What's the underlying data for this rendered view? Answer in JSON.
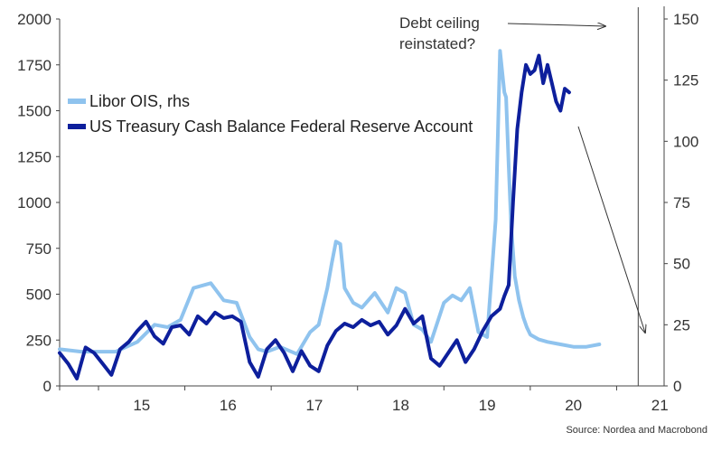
{
  "chart_data": {
    "type": "line",
    "x_ticks": [
      "15",
      "16",
      "17",
      "18",
      "19",
      "20",
      "21"
    ],
    "xlim": [
      2014.55,
      2021.55
    ],
    "ylim_left": [
      0,
      2000
    ],
    "yticks_left": [
      "0",
      "250",
      "500",
      "750",
      "1000",
      "1250",
      "1500",
      "1750",
      "2000"
    ],
    "ylim_right": [
      0,
      150
    ],
    "yticks_right": [
      "0",
      "25",
      "50",
      "75",
      "100",
      "125",
      "150"
    ],
    "grid": false,
    "legend_position": "top-left",
    "colors": {
      "libor": "#8fc3ee",
      "treasury": "#0d1f9c"
    },
    "series": [
      {
        "name": "Libor OIS, rhs",
        "axis": "right",
        "x": [
          2014.55,
          2014.8,
          2015.0,
          2015.2,
          2015.45,
          2015.65,
          2015.8,
          2015.95,
          2016.1,
          2016.3,
          2016.45,
          2016.6,
          2016.75,
          2016.85,
          2016.95,
          2017.1,
          2017.3,
          2017.45,
          2017.55,
          2017.65,
          2017.7,
          2017.75,
          2017.8,
          2017.85,
          2017.95,
          2018.05,
          2018.2,
          2018.35,
          2018.45,
          2018.55,
          2018.65,
          2018.75,
          2018.85,
          2019.0,
          2019.1,
          2019.2,
          2019.3,
          2019.4,
          2019.5,
          2019.6,
          2019.65,
          2019.7,
          2019.72,
          2019.75,
          2019.78,
          2019.82,
          2019.87,
          2019.92,
          2019.96,
          2020.0,
          2020.1,
          2020.2,
          2020.35,
          2020.5,
          2020.65,
          2020.8
        ],
        "y": [
          15,
          14,
          14,
          14,
          18,
          25,
          24,
          27,
          40,
          42,
          35,
          34,
          20,
          15,
          14,
          16,
          13,
          22,
          25,
          40,
          50,
          59,
          58,
          40,
          34,
          32,
          38,
          30,
          40,
          38,
          25,
          23,
          18,
          34,
          37,
          35,
          40,
          22,
          20,
          68,
          137,
          120,
          118,
          90,
          65,
          45,
          35,
          28,
          24,
          21,
          19,
          18,
          17,
          16,
          16,
          17
        ]
      },
      {
        "name": "US Treasury Cash Balance Federal Reserve Account",
        "axis": "left",
        "x": [
          2014.55,
          2014.65,
          2014.75,
          2014.85,
          2014.95,
          2015.05,
          2015.15,
          2015.25,
          2015.35,
          2015.45,
          2015.55,
          2015.65,
          2015.75,
          2015.85,
          2015.95,
          2016.05,
          2016.15,
          2016.25,
          2016.35,
          2016.45,
          2016.55,
          2016.65,
          2016.75,
          2016.85,
          2016.95,
          2017.05,
          2017.15,
          2017.25,
          2017.35,
          2017.45,
          2017.55,
          2017.65,
          2017.75,
          2017.85,
          2017.95,
          2018.05,
          2018.15,
          2018.25,
          2018.35,
          2018.45,
          2018.55,
          2018.65,
          2018.75,
          2018.85,
          2018.95,
          2019.05,
          2019.15,
          2019.25,
          2019.35,
          2019.45,
          2019.55,
          2019.65,
          2019.7,
          2019.75,
          2019.8,
          2019.85,
          2019.9,
          2019.95,
          2020.0,
          2020.05,
          2020.1,
          2020.15,
          2020.2,
          2020.25,
          2020.3,
          2020.35,
          2020.4,
          2020.45
        ],
        "y": [
          180,
          120,
          40,
          210,
          180,
          120,
          60,
          200,
          240,
          300,
          350,
          270,
          230,
          320,
          330,
          280,
          380,
          340,
          400,
          370,
          380,
          350,
          130,
          50,
          200,
          250,
          180,
          80,
          190,
          110,
          80,
          220,
          300,
          340,
          320,
          360,
          330,
          350,
          280,
          330,
          420,
          340,
          380,
          150,
          110,
          180,
          250,
          130,
          200,
          300,
          380,
          420,
          490,
          550,
          1000,
          1400,
          1600,
          1750,
          1700,
          1720,
          1800,
          1650,
          1750,
          1650,
          1550,
          1500,
          1620,
          1600
        ]
      }
    ],
    "annotation": {
      "line1": "Debt ceiling",
      "line2": "reinstated?",
      "marker_x": 2021.25
    },
    "source": "Source: Nordea and Macrobond"
  }
}
